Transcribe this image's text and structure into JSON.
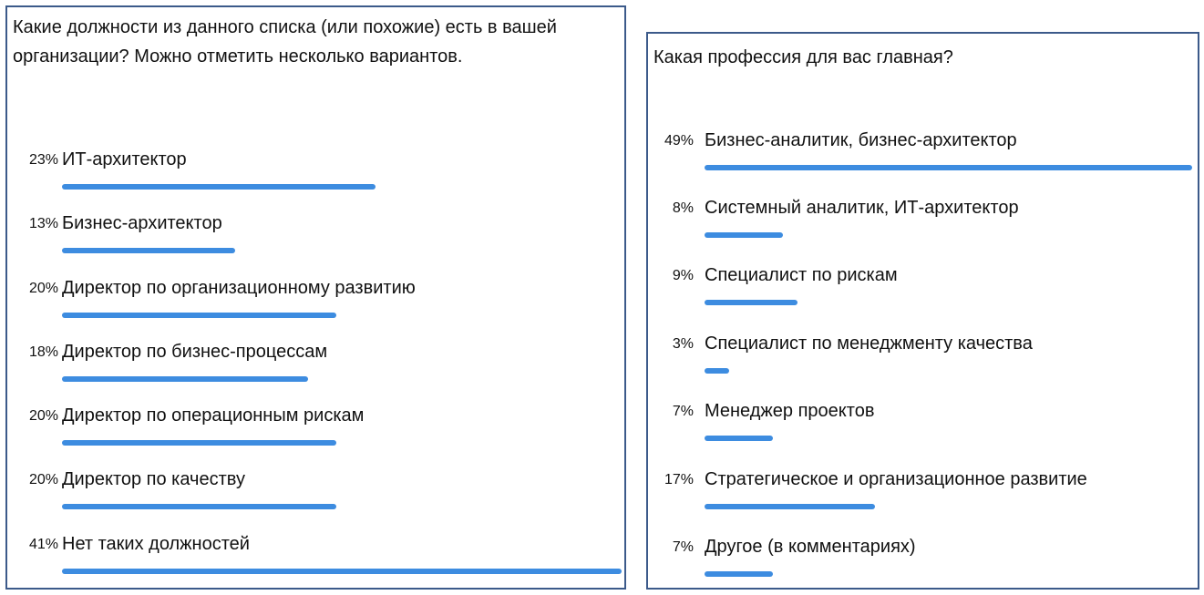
{
  "left_poll": {
    "question": "Какие должности из данного списка (или похожие) есть в вашей организации? Можно отметить несколько вариантов.",
    "options": [
      {
        "percent": "23%",
        "label": "ИТ-архитектор",
        "fill": 0.56
      },
      {
        "percent": "13%",
        "label": "Бизнес-архитектор",
        "fill": 0.31
      },
      {
        "percent": "20%",
        "label": "Директор по организационному развитию",
        "fill": 0.49
      },
      {
        "percent": "18%",
        "label": "Директор по бизнес-процессам",
        "fill": 0.44
      },
      {
        "percent": "20%",
        "label": "Директор по операционным рискам",
        "fill": 0.49
      },
      {
        "percent": "20%",
        "label": "Директор по качеству",
        "fill": 0.49
      },
      {
        "percent": "41%",
        "label": "Нет таких должностей",
        "fill": 1.0
      }
    ],
    "bar_color": "#3d8ce0"
  },
  "right_poll": {
    "question": "Какая профессия для вас главная?",
    "options": [
      {
        "percent": "49%",
        "label": "Бизнес-аналитик, бизнес-архитектор",
        "fill": 1.0
      },
      {
        "percent": "8%",
        "label": "Системный аналитик, ИТ-архитектор",
        "fill": 0.16
      },
      {
        "percent": "9%",
        "label": "Специалист по рискам",
        "fill": 0.19
      },
      {
        "percent": "3%",
        "label": "Специалист по менеджменту качества",
        "fill": 0.05
      },
      {
        "percent": "7%",
        "label": "Менеджер проектов",
        "fill": 0.14
      },
      {
        "percent": "17%",
        "label": "Стратегическое и организационное развитие",
        "fill": 0.35
      },
      {
        "percent": "7%",
        "label": "Другое (в комментариях)",
        "fill": 0.14
      }
    ],
    "bar_color": "#3d8ce0"
  }
}
